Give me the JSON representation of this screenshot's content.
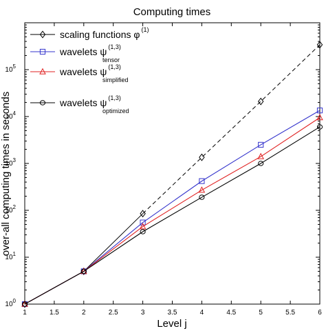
{
  "chart_data": {
    "type": "line",
    "title": "Computing times",
    "xlabel": "Level j",
    "ylabel": "over-all computing times in seconds",
    "xlim": [
      1,
      6
    ],
    "ylim_exponents": [
      0,
      6
    ],
    "y_scale": "log",
    "x_ticks": [
      "1",
      "1.5",
      "2",
      "2.5",
      "3",
      "3.5",
      "4",
      "4.5",
      "5",
      "5.5",
      "6"
    ],
    "y_tick_base": "10",
    "y_tick_exponents": [
      "0",
      "1",
      "2",
      "3",
      "4",
      "5"
    ],
    "grid": false,
    "legend_position": "top-left",
    "series": [
      {
        "name_main": "scaling functions φ",
        "name_sup": "(1)",
        "name_sub": "",
        "color": "#000000",
        "marker": "diamond",
        "x": [
          1,
          2,
          3,
          4,
          5,
          6
        ],
        "y": [
          1,
          5,
          85,
          1350,
          21000,
          340000
        ],
        "dashed_from_x": 3
      },
      {
        "name_main": "wavelets ψ",
        "name_sup": "(1,3)",
        "name_sub": "tensor",
        "color": "#3333cc",
        "marker": "square",
        "x": [
          1,
          2,
          3,
          4,
          5,
          6
        ],
        "y": [
          1,
          5,
          55,
          420,
          2500,
          13500
        ]
      },
      {
        "name_main": "wavelets ψ",
        "name_sup": "(1,3)",
        "name_sub": "simplified",
        "color": "#e02020",
        "marker": "triangle",
        "x": [
          1,
          2,
          3,
          4,
          5,
          6
        ],
        "y": [
          1,
          5,
          45,
          270,
          1400,
          9500
        ]
      },
      {
        "name_main": "wavelets ψ",
        "name_sup": "(1,3)",
        "name_sub": "optimized",
        "color": "#000000",
        "marker": "circle",
        "x": [
          1,
          2,
          3,
          4,
          5,
          6
        ],
        "y": [
          1,
          5,
          35,
          190,
          1000,
          6000
        ]
      }
    ]
  }
}
